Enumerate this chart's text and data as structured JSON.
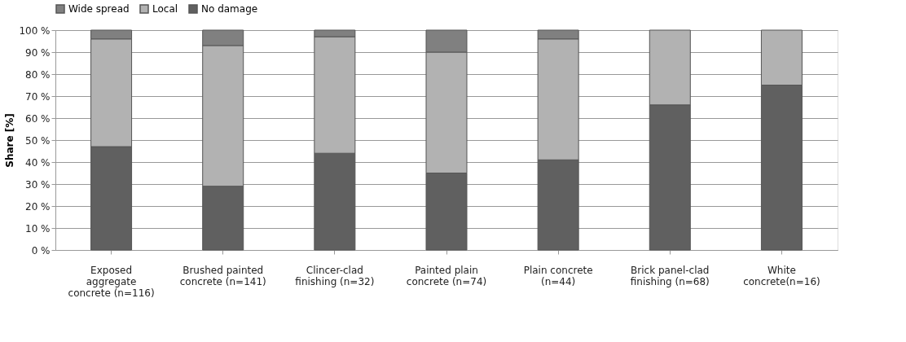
{
  "chart_data": {
    "type": "bar",
    "stacked": true,
    "ylabel": "Share [%]",
    "categories": [
      "Exposed aggregate concrete (n=116)",
      "Brushed painted concrete (n=141)",
      "Clincer-clad finishing (n=32)",
      "Painted plain concrete (n=74)",
      "Plain concrete (n=44)",
      "Brick panel-clad finishing (n=68)",
      "White concrete(n=16)"
    ],
    "series": [
      {
        "name": "No damage",
        "color": "#606060",
        "values": [
          47,
          29,
          44,
          35,
          41,
          66,
          75
        ]
      },
      {
        "name": "Local",
        "color": "#b2b2b2",
        "values": [
          49,
          64,
          53,
          55,
          55,
          34,
          25
        ]
      },
      {
        "name": "Wide spread",
        "color": "#808080",
        "values": [
          4,
          7,
          3,
          10,
          4,
          null,
          null
        ]
      }
    ],
    "ylim": [
      0,
      100
    ],
    "yticks": [
      {
        "value": 0,
        "label": "0 %"
      },
      {
        "value": 10,
        "label": "10 %"
      },
      {
        "value": 20,
        "label": "20 %"
      },
      {
        "value": 30,
        "label": "30 %"
      },
      {
        "value": 40,
        "label": "40 %"
      },
      {
        "value": 50,
        "label": "50 %"
      },
      {
        "value": 60,
        "label": "60 %"
      },
      {
        "value": 70,
        "label": "70 %"
      },
      {
        "value": 80,
        "label": "80 %"
      },
      {
        "value": 90,
        "label": "90 %"
      },
      {
        "value": 100,
        "label": "100 %"
      }
    ],
    "grid": "y",
    "legend": "top"
  }
}
